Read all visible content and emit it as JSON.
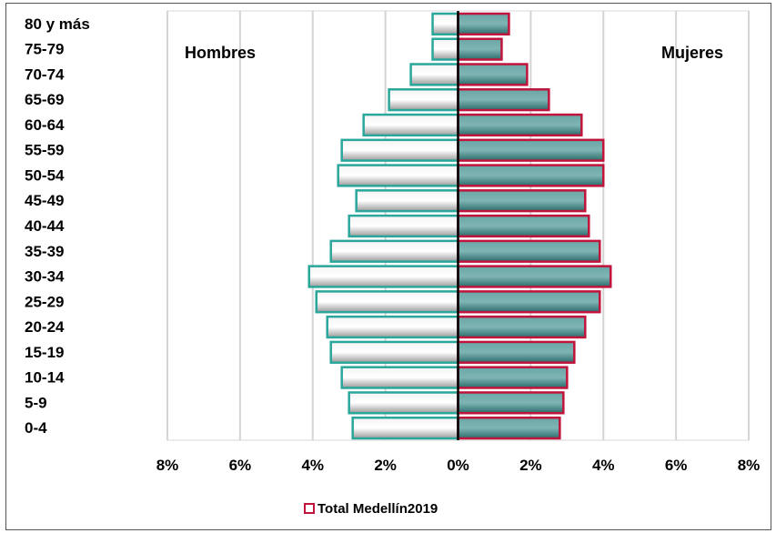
{
  "chart_data": {
    "type": "bar",
    "subtype": "population-pyramid",
    "categories": [
      "80 y más",
      "75-79",
      "70-74",
      "65-69",
      "60-64",
      "55-59",
      "50-54",
      "45-49",
      "40-44",
      "35-39",
      "30-34",
      "25-29",
      "20-24",
      "15-19",
      "10-14",
      "5-9",
      "0-4"
    ],
    "series": [
      {
        "name": "Hombres",
        "values": [
          -0.7,
          -0.7,
          -1.3,
          -1.9,
          -2.6,
          -3.2,
          -3.3,
          -2.8,
          -3.0,
          -3.5,
          -4.1,
          -3.9,
          -3.6,
          -3.5,
          -3.2,
          -3.0,
          -2.9
        ],
        "color": "#dcdcdc",
        "outline": "#2aa69b"
      },
      {
        "name": "Mujeres",
        "values": [
          1.4,
          1.2,
          1.9,
          2.5,
          3.4,
          4.0,
          4.0,
          3.5,
          3.6,
          3.9,
          4.2,
          3.9,
          3.5,
          3.2,
          3.0,
          2.9,
          2.8
        ],
        "color": "#3f8a8a",
        "outline": "#c0143c"
      }
    ],
    "xlim": [
      -8,
      8
    ],
    "xticks": [
      -8,
      -6,
      -4,
      -2,
      0,
      2,
      4,
      6,
      8
    ],
    "xtick_labels": [
      "8%",
      "6%",
      "4%",
      "2%",
      "0%",
      "2%",
      "4%",
      "6%",
      "8%"
    ],
    "grid": true,
    "annotations": {
      "left": "Hombres",
      "right": "Mujeres"
    },
    "legend": {
      "label": "Total Medellín2019",
      "swatch_color": "#c0143c",
      "position": "bottom-center"
    }
  }
}
